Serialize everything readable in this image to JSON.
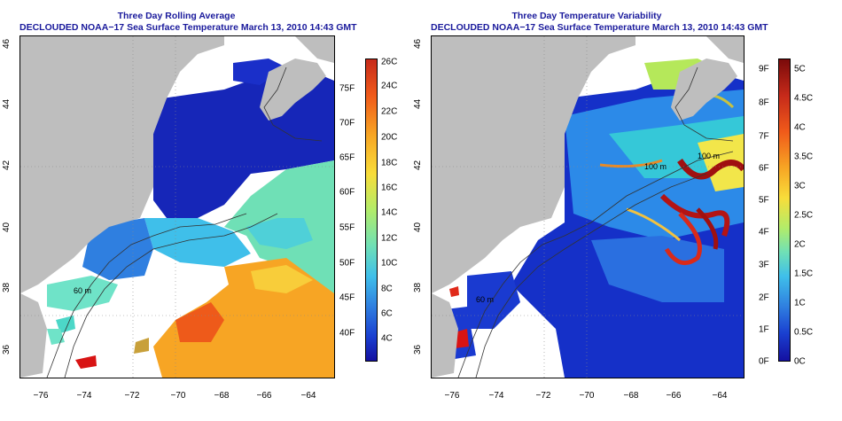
{
  "panels": [
    {
      "title_line1": "Three Day Rolling Average",
      "title_line2": "DECLOUDED NOAA−17 Sea Surface Temperature March 13, 2010 14:43 GMT",
      "colorbar": {
        "celsius_labels": [
          "26C",
          "24C",
          "22C",
          "20C",
          "18C",
          "16C",
          "14C",
          "12C",
          "10C",
          "8C",
          "6C",
          "4C"
        ],
        "fahrenheit_labels": [
          "75F",
          "70F",
          "65F",
          "60F",
          "55F",
          "50F",
          "45F",
          "40F"
        ]
      },
      "contour_labels": [
        "60 m"
      ]
    },
    {
      "title_line1": "Three Day Temperature Variability",
      "title_line2": "DECLOUDED NOAA−17 Sea Surface Temperature March 13, 2010 14:43 GMT",
      "colorbar": {
        "celsius_labels": [
          "5C",
          "4.5C",
          "4C",
          "3.5C",
          "3C",
          "2.5C",
          "2C",
          "1.5C",
          "1C",
          "0.5C",
          "0C"
        ],
        "fahrenheit_labels": [
          "9F",
          "8F",
          "7F",
          "6F",
          "5F",
          "4F",
          "3F",
          "2F",
          "1F",
          "0F"
        ]
      },
      "contour_labels": [
        "100 m",
        "100 m",
        "60 m"
      ]
    }
  ],
  "axes": {
    "x_labels": [
      "−76",
      "−74",
      "−72",
      "−70",
      "−68",
      "−66",
      "−64"
    ],
    "y_labels": [
      "36",
      "38",
      "40",
      "42",
      "44",
      "46"
    ]
  },
  "colors": {
    "title": "#1a1a9c",
    "land": "#bebebe",
    "missing": "#ffffff"
  }
}
